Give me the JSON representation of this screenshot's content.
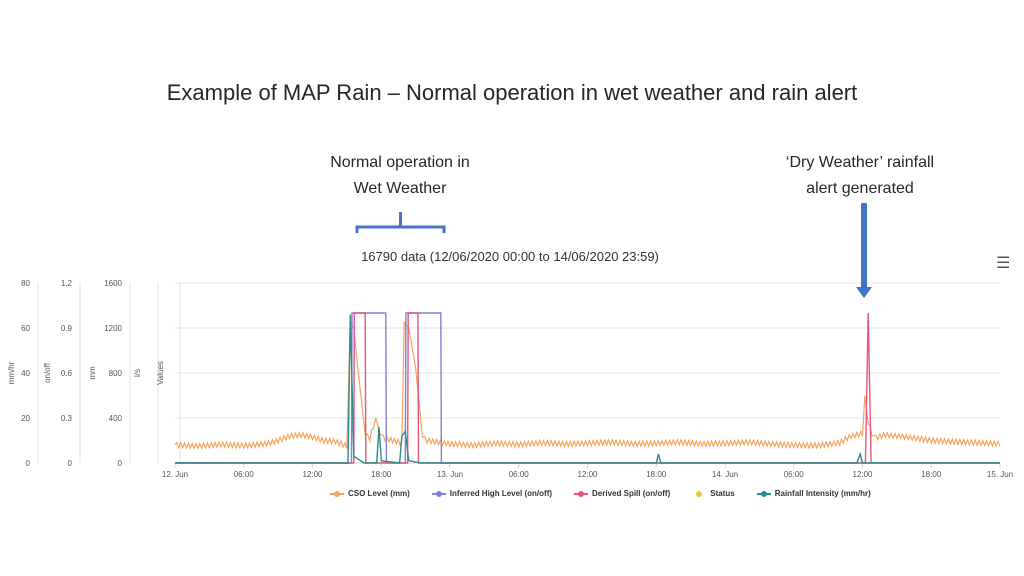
{
  "title": "Example of MAP Rain – Normal operation in wet weather and rain alert",
  "annotations": {
    "left_line1": "Normal operation in",
    "left_line2": "Wet Weather",
    "right_line1": "‘Dry Weather’ rainfall",
    "right_line2": "alert generated"
  },
  "chart_subtitle": "16790 data (12/06/2020 00:00 to 14/06/2020 23:59)",
  "menu_icon": "hamburger-menu-icon",
  "colors": {
    "cso": "#f4a460",
    "inferred": "#8080e0",
    "spill": "#e8557a",
    "status": "#e6c84a",
    "rain": "#2a8c8c",
    "arrow": "#4472c4",
    "brace": "#4472c4",
    "grid": "#e6e6e6"
  },
  "chart_data": {
    "type": "line",
    "x_unit": "hours since 12. Jun 00:00",
    "xlim": [
      0,
      72
    ],
    "x_ticks": [
      {
        "x": 0,
        "label": "12. Jun"
      },
      {
        "x": 6,
        "label": "06:00"
      },
      {
        "x": 12,
        "label": "12:00"
      },
      {
        "x": 18,
        "label": "18:00"
      },
      {
        "x": 24,
        "label": "13. Jun"
      },
      {
        "x": 30,
        "label": "06:00"
      },
      {
        "x": 36,
        "label": "12:00"
      },
      {
        "x": 42,
        "label": "18:00"
      },
      {
        "x": 48,
        "label": "14. Jun"
      },
      {
        "x": 54,
        "label": "06:00"
      },
      {
        "x": 60,
        "label": "12:00"
      },
      {
        "x": 66,
        "label": "18:00"
      },
      {
        "x": 72,
        "label": "15. Jun"
      }
    ],
    "y_axes": [
      {
        "label": "mm/hr",
        "ticks": [
          "80",
          "60",
          "40",
          "20",
          "0"
        ],
        "max": 80
      },
      {
        "label": "on/off",
        "ticks": [
          "1.2",
          "0.9",
          "0.6",
          "0.3",
          "0"
        ],
        "max": 1.2
      },
      {
        "label": "mm",
        "ticks": [
          "1600",
          "1200",
          "800",
          "400",
          "0"
        ],
        "max": 1600
      },
      {
        "label": "l/s",
        "ticks": [],
        "max": 1
      },
      {
        "label": "Values",
        "ticks": [],
        "max": 1
      }
    ],
    "grid": true,
    "legend_position": "bottom",
    "series": [
      {
        "name": "CSO Level (mm)",
        "axis": "mm",
        "points": [
          [
            0,
            160
          ],
          [
            2,
            150
          ],
          [
            4,
            165
          ],
          [
            6,
            155
          ],
          [
            8,
            170
          ],
          [
            9,
            200
          ],
          [
            10,
            240
          ],
          [
            11,
            250
          ],
          [
            12,
            230
          ],
          [
            13,
            200
          ],
          [
            14,
            190
          ],
          [
            15,
            150
          ],
          [
            15.3,
            1250
          ],
          [
            15.6,
            1200
          ],
          [
            16,
            800
          ],
          [
            16.6,
            250
          ],
          [
            17,
            220
          ],
          [
            17.5,
            380
          ],
          [
            18,
            230
          ],
          [
            19,
            200
          ],
          [
            19.8,
            180
          ],
          [
            20,
            1250
          ],
          [
            20.4,
            1200
          ],
          [
            21,
            850
          ],
          [
            21.6,
            230
          ],
          [
            22,
            200
          ],
          [
            24,
            170
          ],
          [
            26,
            160
          ],
          [
            28,
            175
          ],
          [
            30,
            165
          ],
          [
            32,
            180
          ],
          [
            34,
            170
          ],
          [
            36,
            175
          ],
          [
            38,
            185
          ],
          [
            40,
            170
          ],
          [
            42,
            175
          ],
          [
            44,
            185
          ],
          [
            46,
            170
          ],
          [
            48,
            175
          ],
          [
            50,
            185
          ],
          [
            52,
            170
          ],
          [
            54,
            160
          ],
          [
            56,
            155
          ],
          [
            58,
            180
          ],
          [
            59,
            240
          ],
          [
            60,
            260
          ],
          [
            60.2,
            600
          ],
          [
            60.5,
            350
          ],
          [
            61,
            220
          ],
          [
            62,
            250
          ],
          [
            64,
            230
          ],
          [
            66,
            200
          ],
          [
            68,
            190
          ],
          [
            70,
            180
          ],
          [
            72,
            170
          ]
        ]
      },
      {
        "name": "Inferred High Level (on/off)",
        "axis": "on/off",
        "points": [
          [
            0,
            0
          ],
          [
            15.4,
            0
          ],
          [
            15.45,
            1.0
          ],
          [
            18.4,
            1.0
          ],
          [
            18.45,
            0
          ],
          [
            20.1,
            0
          ],
          [
            20.15,
            1.0
          ],
          [
            23.2,
            1.0
          ],
          [
            23.25,
            0
          ],
          [
            72,
            0
          ]
        ]
      },
      {
        "name": "Derived Spill (on/off)",
        "axis": "on/off",
        "points": [
          [
            0,
            0
          ],
          [
            15.6,
            0
          ],
          [
            15.65,
            1.0
          ],
          [
            16.6,
            1.0
          ],
          [
            16.65,
            0
          ],
          [
            20.3,
            0
          ],
          [
            20.35,
            1.0
          ],
          [
            21.2,
            1.0
          ],
          [
            21.25,
            0
          ],
          [
            60.25,
            0
          ],
          [
            60.5,
            1.0
          ],
          [
            60.75,
            0
          ],
          [
            72,
            0
          ]
        ]
      },
      {
        "name": "Status",
        "axis": "on/off",
        "points": []
      },
      {
        "name": "Rainfall Intensity (mm/hr)",
        "axis": "mm/hr",
        "points": [
          [
            0,
            0
          ],
          [
            15.1,
            0
          ],
          [
            15.3,
            66
          ],
          [
            15.6,
            3
          ],
          [
            16.5,
            0
          ],
          [
            17.6,
            0
          ],
          [
            17.8,
            16
          ],
          [
            18,
            1
          ],
          [
            19.6,
            0
          ],
          [
            19.8,
            12
          ],
          [
            20.1,
            14
          ],
          [
            20.4,
            1
          ],
          [
            21.5,
            0
          ],
          [
            42,
            0
          ],
          [
            42.2,
            4
          ],
          [
            42.4,
            0
          ],
          [
            59.5,
            0
          ],
          [
            59.8,
            4
          ],
          [
            60,
            0
          ],
          [
            72,
            0
          ]
        ]
      }
    ]
  }
}
